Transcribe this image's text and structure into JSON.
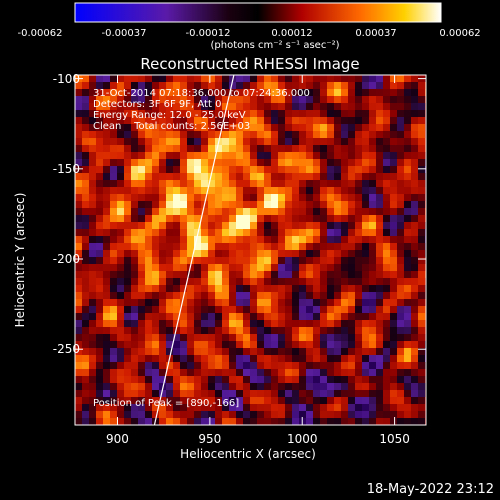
{
  "colorbar": {
    "ticks": [
      "-0.00062",
      "-0.00037",
      "-0.00012",
      "0.00012",
      "0.00037",
      "0.00062"
    ],
    "units": "(photons cm⁻² s⁻¹ asec⁻²)"
  },
  "chart_data": {
    "type": "heatmap",
    "title": "Reconstructed RHESSI Image",
    "xlabel": "Heliocentric X (arcsec)",
    "ylabel": "Heliocentric Y (arcsec)",
    "xlim": [
      877,
      1067
    ],
    "ylim": [
      -292,
      -98
    ],
    "xticks": [
      900,
      950,
      1000,
      1050
    ],
    "yticks": [
      -100,
      -150,
      -200,
      -250
    ],
    "value_range": [
      -0.00062,
      0.00062
    ],
    "colormap": "black-blue-purple-red-orange-yellow-white",
    "limb_line": [
      [
        920,
        -292
      ],
      [
        963,
        -98
      ]
    ],
    "peak": [
      890,
      -166
    ],
    "annotations": [
      "31-Oct-2014 07:18:36.000 to 07:24:36.000",
      "Detectors: 3F 6F 9F, Att 0",
      "Energy Range: 12.0 - 25.0 keV",
      "Clean    Total counts: 2.56E+03",
      "Position of Peak = [890,-166]"
    ]
  },
  "footer": {
    "timestamp": "18-May-2022 23:12"
  }
}
